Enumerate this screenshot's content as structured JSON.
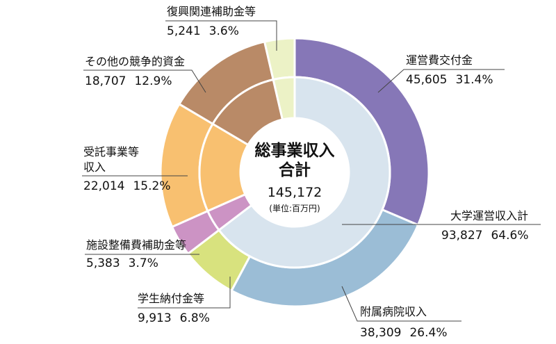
{
  "chart_data": {
    "type": "pie",
    "variant": "double-donut",
    "center": {
      "title_line1": "総事業収入",
      "title_line2": "合計",
      "total": "145,172",
      "unit": "(単位:百万円)"
    },
    "outer": [
      {
        "name": "運営費交付金",
        "value": 45605,
        "value_label": "45,605",
        "percent_label": "31.4%",
        "color": "#8677b7"
      },
      {
        "name": "附属病院収入",
        "value": 38309,
        "value_label": "38,309",
        "percent_label": "26.4%",
        "color": "#9bbdd6"
      },
      {
        "name": "学生納付金等",
        "value": 9913,
        "value_label": "9,913",
        "percent_label": "6.8%",
        "color": "#d8e27e"
      },
      {
        "name": "施設整備費補助金等",
        "value": 5383,
        "value_label": "5,383",
        "percent_label": "3.7%",
        "color": "#cc93c4"
      },
      {
        "name": "受託事業等収入",
        "name_lines": [
          "受託事業等",
          "収入"
        ],
        "value": 22014,
        "value_label": "22,014",
        "percent_label": "15.2%",
        "color": "#f8c070"
      },
      {
        "name": "その他の競争的資金",
        "value": 18707,
        "value_label": "18,707",
        "percent_label": "12.9%",
        "color": "#b98a67"
      },
      {
        "name": "復興関連補助金等",
        "value": 5241,
        "value_label": "5,241",
        "percent_label": "3.6%",
        "color": "#ecf2c6"
      }
    ],
    "inner": [
      {
        "name": "大学運営収入計",
        "value": 93827,
        "value_label": "93,827",
        "percent_label": "64.6%",
        "color": "#d8e4ee"
      },
      {
        "name": "施設整備費補助金等",
        "value": 5383,
        "color": "#cc93c4"
      },
      {
        "name": "受託事業等収入",
        "value": 22014,
        "color": "#f8c070"
      },
      {
        "name": "その他の競争的資金",
        "value": 18707,
        "color": "#b98a67"
      },
      {
        "name": "復興関連補助金等",
        "value": 5241,
        "color": "#ecf2c6"
      }
    ]
  }
}
